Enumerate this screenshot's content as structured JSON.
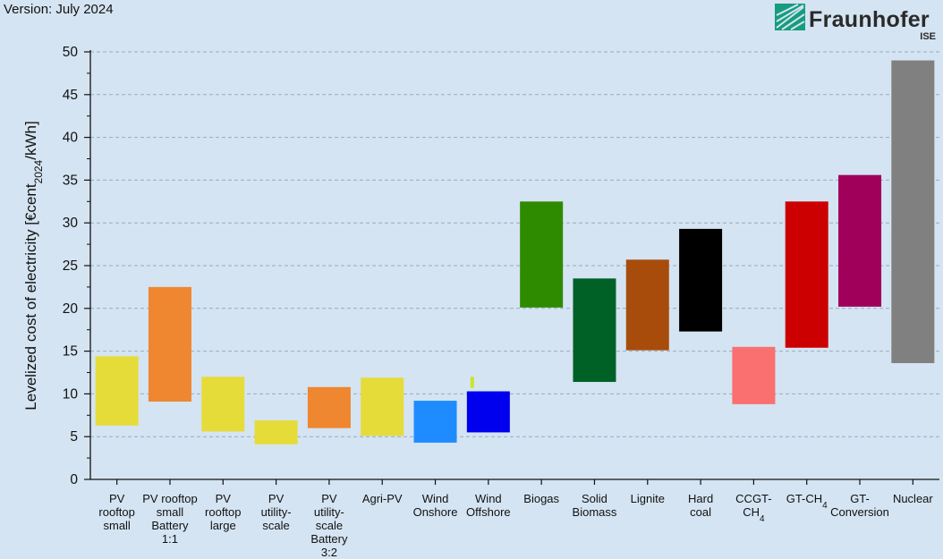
{
  "header": {
    "version": "Version: July 2024",
    "logo_text": "Fraunhofer",
    "logo_sub": "ISE"
  },
  "chart_data": {
    "type": "bar",
    "ylabel_parts": [
      "Levelized cost of electricity [€cent",
      "2024",
      "/kWh]"
    ],
    "ylim": [
      0,
      50
    ],
    "yticks": [
      "0",
      "5",
      "10",
      "15",
      "20",
      "25",
      "30",
      "35",
      "40",
      "45",
      "50"
    ],
    "grid": true,
    "series": [
      {
        "category_lines": [
          [
            "PV",
            "rooftop",
            "small"
          ]
        ],
        "low": 6.3,
        "high": 14.4,
        "color": "#e5dc3a"
      },
      {
        "category_lines": [
          [
            "PV rooftop",
            "small",
            "Battery",
            "1:1"
          ]
        ],
        "low": 9.1,
        "high": 22.5,
        "color": "#ef8630"
      },
      {
        "category_lines": [
          [
            "PV",
            "rooftop",
            "large"
          ]
        ],
        "low": 5.6,
        "high": 12.0,
        "color": "#e5dc3a"
      },
      {
        "category_lines": [
          [
            "PV",
            "utility-",
            "scale"
          ]
        ],
        "low": 4.1,
        "high": 6.9,
        "color": "#e5dc3a"
      },
      {
        "category_lines": [
          [
            "PV",
            "utility-",
            "scale",
            "Battery",
            "3:2"
          ]
        ],
        "low": 6.0,
        "high": 10.8,
        "color": "#ef8630"
      },
      {
        "category_lines": [
          [
            "Agri-PV"
          ]
        ],
        "low": 5.1,
        "high": 11.9,
        "color": "#e5dc3a"
      },
      {
        "category_lines": [
          [
            "Wind",
            "Onshore"
          ]
        ],
        "low": 4.3,
        "high": 9.2,
        "color": "#1e8cff"
      },
      {
        "category_lines": [
          [
            "Wind",
            "Offshore"
          ]
        ],
        "low": 5.5,
        "high": 10.3,
        "color": "#0000ee",
        "extra": {
          "low": 10.7,
          "high": 12.0,
          "color": "#c8e627"
        }
      },
      {
        "category_lines": [
          [
            "Biogas"
          ]
        ],
        "low": 20.1,
        "high": 32.5,
        "color": "#2e8b00"
      },
      {
        "category_lines": [
          [
            "Solid",
            "Biomass"
          ]
        ],
        "low": 11.4,
        "high": 23.5,
        "color": "#006127"
      },
      {
        "category_lines": [
          [
            "Lignite"
          ]
        ],
        "low": 15.1,
        "high": 25.7,
        "color": "#a84c0c"
      },
      {
        "category_lines": [
          [
            "Hard",
            "coal"
          ]
        ],
        "low": 17.3,
        "high": 29.3,
        "color": "#000000"
      },
      {
        "category_lines": [
          [
            "CCGT-",
            "CH|4"
          ]
        ],
        "low": 8.8,
        "high": 15.5,
        "color": "#fa7070"
      },
      {
        "category_lines": [
          [
            "GT-CH|4"
          ]
        ],
        "low": 15.4,
        "high": 32.5,
        "color": "#cc0000"
      },
      {
        "category_lines": [
          [
            "GT-",
            "Conversion"
          ]
        ],
        "low": 20.2,
        "high": 35.6,
        "color": "#a0005a"
      },
      {
        "category_lines": [
          [
            "Nuclear"
          ]
        ],
        "low": 13.6,
        "high": 49.0,
        "color": "#808080"
      }
    ]
  }
}
